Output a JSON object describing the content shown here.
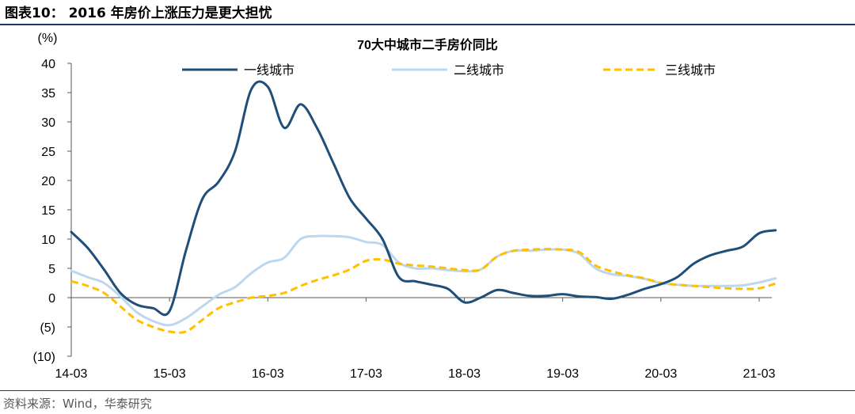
{
  "figure_title": "图表10：  2016 年房价上涨压力是更大担忧",
  "source_note": "资料来源：Wind，华泰研究",
  "colors": {
    "tier1": "#1f4e79",
    "tier2": "#bdd7ee",
    "tier3": "#ffc000",
    "rule": "#1f3864"
  },
  "chart_data": {
    "type": "line",
    "title": "70大中城市二手房价同比",
    "ylabel": "(%)",
    "ylim": [
      -10,
      40
    ],
    "yticks": [
      40,
      35,
      30,
      25,
      20,
      15,
      10,
      5,
      0,
      -5,
      -10
    ],
    "ytick_labels": [
      "40",
      "35",
      "30",
      "25",
      "20",
      "15",
      "10",
      "5",
      "0",
      "(5)",
      "(10)"
    ],
    "xlim": [
      "2014-03",
      "2021-06"
    ],
    "xticks": [
      "2014-03",
      "2015-03",
      "2016-03",
      "2017-03",
      "2018-03",
      "2019-03",
      "2020-03",
      "2021-03"
    ],
    "xtick_labels": [
      "14-03",
      "15-03",
      "16-03",
      "17-03",
      "18-03",
      "19-03",
      "20-03",
      "21-03"
    ],
    "grid": false,
    "legend_position": "top",
    "x": [
      "2014-03",
      "2014-05",
      "2014-07",
      "2014-09",
      "2014-11",
      "2015-01",
      "2015-03",
      "2015-05",
      "2015-07",
      "2015-09",
      "2015-11",
      "2016-01",
      "2016-03",
      "2016-05",
      "2016-07",
      "2016-09",
      "2016-11",
      "2017-01",
      "2017-03",
      "2017-05",
      "2017-07",
      "2017-09",
      "2017-11",
      "2018-01",
      "2018-03",
      "2018-05",
      "2018-07",
      "2018-09",
      "2018-11",
      "2019-01",
      "2019-03",
      "2019-05",
      "2019-07",
      "2019-09",
      "2019-11",
      "2020-01",
      "2020-03",
      "2020-05",
      "2020-07",
      "2020-09",
      "2020-11",
      "2021-01",
      "2021-03",
      "2021-05"
    ],
    "series": [
      {
        "name": "一线城市",
        "color": "#1f4e79",
        "style": "solid",
        "values": [
          11.2,
          8.5,
          4.8,
          0.8,
          -1.2,
          -1.8,
          -2.3,
          8.0,
          16.8,
          19.8,
          25.0,
          35.6,
          36.0,
          29.0,
          33.0,
          29.0,
          23.0,
          17.0,
          13.5,
          10.0,
          3.5,
          2.8,
          2.2,
          1.5,
          -0.8,
          0.0,
          1.3,
          0.8,
          0.3,
          0.3,
          0.6,
          0.2,
          0.1,
          -0.2,
          0.5,
          1.5,
          2.3,
          3.5,
          5.8,
          7.2,
          8.0,
          8.7,
          11.0,
          11.5
        ]
      },
      {
        "name": "二线城市",
        "color": "#bdd7ee",
        "style": "solid",
        "values": [
          4.6,
          3.5,
          2.5,
          0.2,
          -2.5,
          -4.0,
          -4.7,
          -3.5,
          -1.5,
          0.5,
          1.8,
          4.2,
          6.0,
          6.8,
          10.0,
          10.5,
          10.5,
          10.3,
          9.5,
          9.0,
          6.0,
          5.0,
          5.0,
          4.7,
          4.5,
          4.8,
          7.0,
          8.0,
          8.0,
          8.2,
          8.2,
          7.5,
          5.0,
          4.0,
          3.7,
          3.2,
          2.5,
          2.2,
          2.0,
          2.0,
          2.0,
          2.1,
          2.6,
          3.3
        ]
      },
      {
        "name": "三线城市",
        "color": "#ffc000",
        "style": "dashed",
        "values": [
          2.8,
          2.0,
          0.8,
          -1.5,
          -3.8,
          -5.0,
          -5.8,
          -5.8,
          -3.8,
          -1.8,
          -0.8,
          0.0,
          0.3,
          0.8,
          2.0,
          3.0,
          3.8,
          4.8,
          6.3,
          6.5,
          5.8,
          5.5,
          5.3,
          5.0,
          4.7,
          4.8,
          7.0,
          8.0,
          8.2,
          8.3,
          8.2,
          7.8,
          5.5,
          4.5,
          3.8,
          3.3,
          2.5,
          2.2,
          2.0,
          1.8,
          1.6,
          1.5,
          1.6,
          2.4
        ]
      }
    ]
  }
}
